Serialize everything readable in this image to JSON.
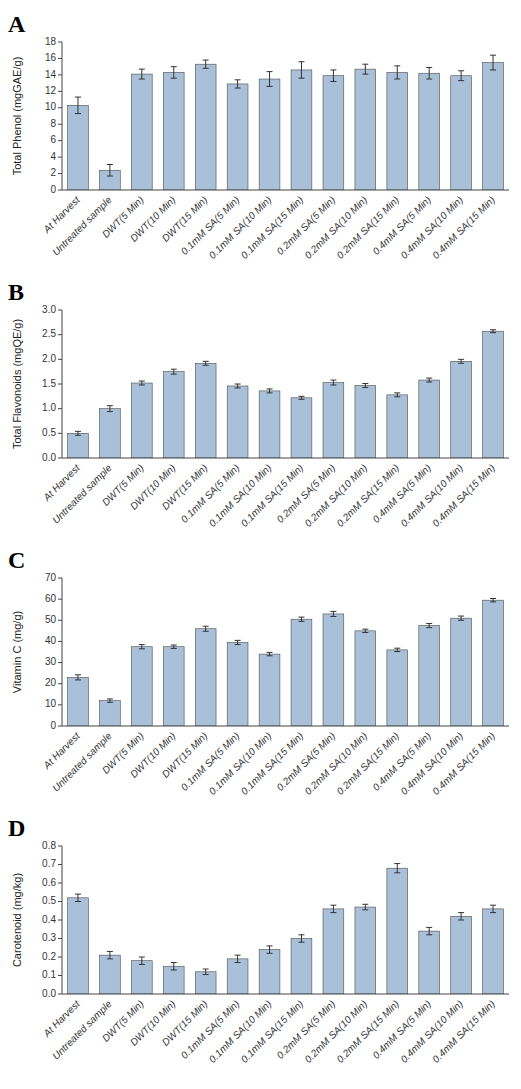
{
  "chart_data": [
    {
      "type": "bar",
      "title": "A",
      "categories": [
        "At Harvest",
        "Untreated sample",
        "DWT(5 Min)",
        "DWT(10 Min)",
        "DWT(15 Min)",
        "0.1mM SA(5 Min)",
        "0.1mM SA(10 Min)",
        "0.1mM SA(15 Min)",
        "0.2mM SA(5 Min)",
        "0.2mM SA(10 Min)",
        "0.2mM SA(15 Min)",
        "0.4mM SA(5 Min)",
        "0.4mM SA(10 Min)",
        "0.4mM SA(15 Min)"
      ],
      "values": [
        10.3,
        2.4,
        14.1,
        14.3,
        15.3,
        12.9,
        13.5,
        14.6,
        13.9,
        14.7,
        14.3,
        14.2,
        13.9,
        15.5
      ],
      "errors": [
        1.0,
        0.7,
        0.6,
        0.7,
        0.5,
        0.5,
        0.9,
        1.0,
        0.7,
        0.6,
        0.8,
        0.7,
        0.6,
        0.9
      ],
      "ylabel": "Total Phenol (mgGAE/g)",
      "ylim": [
        0,
        18
      ],
      "yticks": [
        0,
        2,
        4,
        6,
        8,
        10,
        12,
        14,
        16,
        18
      ],
      "color": "#a8c0d8",
      "grid": false
    },
    {
      "type": "bar",
      "title": "B",
      "categories": [
        "At Harvest",
        "Untreated sample",
        "DWT(5 Min)",
        "DWT(10 Min)",
        "DWT(15 Min)",
        "0.1mM SA(5 Min)",
        "0.1mM SA(10 Min)",
        "0.1mM SA(15 Min)",
        "0.2mM SA(5 Min)",
        "0.2mM SA(10 Min)",
        "0.2mM SA(15 Min)",
        "0.4mM SA(5 Min)",
        "0.4mM SA(10 Min)",
        "0.4mM SA(15 Min)"
      ],
      "values": [
        0.5,
        1.0,
        1.52,
        1.75,
        1.92,
        1.46,
        1.36,
        1.22,
        1.53,
        1.47,
        1.28,
        1.58,
        1.96,
        2.57
      ],
      "errors": [
        0.04,
        0.06,
        0.04,
        0.05,
        0.04,
        0.04,
        0.04,
        0.03,
        0.05,
        0.04,
        0.04,
        0.04,
        0.04,
        0.03
      ],
      "ylabel": "Total Flavonoids (mgQE/g)",
      "ylim": [
        0,
        3.0
      ],
      "yticks": [
        {
          "value": 0,
          "label": "0.0"
        },
        0.5,
        {
          "value": 1.0,
          "label": "1.0"
        },
        1.5,
        {
          "value": 2.0,
          "label": "2.0"
        },
        2.5,
        {
          "value": 3.0,
          "label": "3.0"
        }
      ],
      "color": "#a8c0d8",
      "grid": false
    },
    {
      "type": "bar",
      "title": "C",
      "categories": [
        "At Harvest",
        "Untreated sample",
        "DWT(5 Min)",
        "DWT(10 Min)",
        "DWT(15 Min)",
        "0.1mM SA(5 Min)",
        "0.1mM SA(10 Min)",
        "0.1mM SA(15 Min)",
        "0.2mM SA(5 Min)",
        "0.2mM SA(10 Min)",
        "0.2mM SA(15 Min)",
        "0.4mM SA(5 Min)",
        "0.4mM SA(10 Min)",
        "0.4mM SA(15 Min)"
      ],
      "values": [
        23,
        12,
        37.5,
        37.5,
        46,
        39.5,
        34,
        50.5,
        53,
        45,
        36,
        47.5,
        51,
        59.5
      ],
      "errors": [
        1.2,
        0.8,
        1.0,
        0.8,
        1.2,
        1.0,
        0.8,
        1.0,
        1.2,
        0.8,
        0.8,
        1.0,
        1.0,
        0.8
      ],
      "ylabel": "Vitamin C (mg/g)",
      "ylim": [
        0,
        70
      ],
      "yticks": [
        0,
        10,
        20,
        30,
        40,
        50,
        60,
        70
      ],
      "color": "#a8c0d8",
      "grid": false
    },
    {
      "type": "bar",
      "title": "D",
      "categories": [
        "At Harvest",
        "Untreated sample",
        "DWT(5 Min)",
        "DWT(10 Min)",
        "DWT(15 Min)",
        "0.1mM SA(5 Min)",
        "0.1mM SA(10 Min)",
        "0.1mM SA(15 Min)",
        "0.2mM SA(5 Min)",
        "0.2mM SA(10 Min)",
        "0.2mM SA(15 Min)",
        "0.4mM SA(5 Min)",
        "0.4mM SA(10 Min)",
        "0.4mM SA(15 Min)"
      ],
      "values": [
        0.52,
        0.21,
        0.18,
        0.15,
        0.12,
        0.19,
        0.24,
        0.3,
        0.46,
        0.47,
        0.68,
        0.34,
        0.42,
        0.46
      ],
      "errors": [
        0.02,
        0.02,
        0.02,
        0.02,
        0.015,
        0.02,
        0.02,
        0.02,
        0.02,
        0.015,
        0.025,
        0.02,
        0.02,
        0.02
      ],
      "ylabel": "Carotenoid (mg/kg)",
      "ylim": [
        0,
        0.8
      ],
      "yticks": [
        {
          "value": 0,
          "label": "0.0"
        },
        0.1,
        0.2,
        0.3,
        0.4,
        0.5,
        0.6,
        0.7,
        0.8
      ],
      "color": "#a8c0d8",
      "grid": false
    }
  ]
}
